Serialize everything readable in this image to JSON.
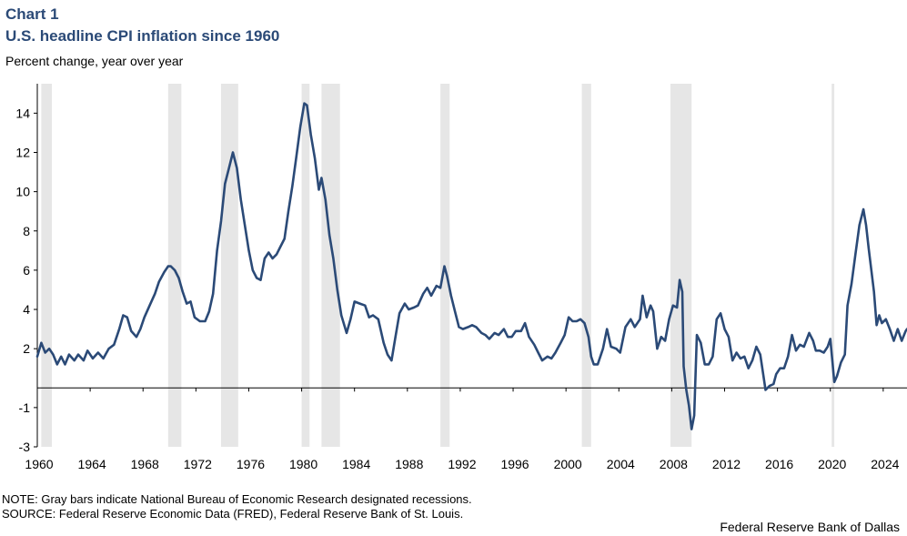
{
  "header": {
    "chart_label": "Chart 1",
    "title": "U.S. headline CPI inflation since 1960",
    "subtitle": "Percent change, year over year"
  },
  "footer": {
    "note": "NOTE: Gray bars indicate National Bureau of Economic Research designated recessions.",
    "source": "SOURCE: Federal Reserve Economic Data (FRED), Federal Reserve Bank of St. Louis.",
    "credit": "Federal Reserve Bank of Dallas"
  },
  "colors": {
    "line": "#2b4a77",
    "recession": "#e6e6e6",
    "axis": "#000000"
  },
  "chart_data": {
    "type": "line",
    "xlim": [
      1960,
      2025.8
    ],
    "ylim": [
      -3,
      15.5
    ],
    "x_ticks": [
      1960,
      1964,
      1968,
      1972,
      1976,
      1980,
      1984,
      1988,
      1992,
      1996,
      2000,
      2004,
      2008,
      2012,
      2016,
      2020,
      2024
    ],
    "y_ticks": [
      -3,
      -1,
      2,
      4,
      6,
      8,
      10,
      12,
      14
    ],
    "recessions": [
      [
        1960.3,
        1961.1
      ],
      [
        1969.9,
        1970.9
      ],
      [
        1973.9,
        1975.2
      ],
      [
        1980.0,
        1980.6
      ],
      [
        1981.5,
        1982.9
      ],
      [
        1990.5,
        1991.2
      ],
      [
        2001.2,
        2001.9
      ],
      [
        2007.9,
        2009.5
      ],
      [
        2020.1,
        2020.3
      ]
    ],
    "series": [
      {
        "values": [
          [
            1960.0,
            1.6
          ],
          [
            1960.3,
            2.3
          ],
          [
            1960.6,
            1.8
          ],
          [
            1960.9,
            2.0
          ],
          [
            1961.2,
            1.7
          ],
          [
            1961.5,
            1.2
          ],
          [
            1961.8,
            1.6
          ],
          [
            1962.1,
            1.2
          ],
          [
            1962.4,
            1.7
          ],
          [
            1962.8,
            1.4
          ],
          [
            1963.1,
            1.7
          ],
          [
            1963.5,
            1.4
          ],
          [
            1963.8,
            1.9
          ],
          [
            1964.2,
            1.5
          ],
          [
            1964.6,
            1.8
          ],
          [
            1965.0,
            1.5
          ],
          [
            1965.4,
            2.0
          ],
          [
            1965.8,
            2.2
          ],
          [
            1966.2,
            3.0
          ],
          [
            1966.5,
            3.7
          ],
          [
            1966.8,
            3.6
          ],
          [
            1967.1,
            2.9
          ],
          [
            1967.5,
            2.6
          ],
          [
            1967.8,
            3.0
          ],
          [
            1968.1,
            3.6
          ],
          [
            1968.5,
            4.2
          ],
          [
            1968.9,
            4.8
          ],
          [
            1969.2,
            5.4
          ],
          [
            1969.6,
            5.9
          ],
          [
            1969.9,
            6.2
          ],
          [
            1970.1,
            6.2
          ],
          [
            1970.4,
            6.0
          ],
          [
            1970.7,
            5.6
          ],
          [
            1971.0,
            4.9
          ],
          [
            1971.3,
            4.3
          ],
          [
            1971.6,
            4.4
          ],
          [
            1971.9,
            3.6
          ],
          [
            1972.3,
            3.4
          ],
          [
            1972.7,
            3.4
          ],
          [
            1973.0,
            3.9
          ],
          [
            1973.3,
            4.8
          ],
          [
            1973.6,
            7.0
          ],
          [
            1973.9,
            8.5
          ],
          [
            1974.2,
            10.4
          ],
          [
            1974.5,
            11.2
          ],
          [
            1974.8,
            12.0
          ],
          [
            1975.1,
            11.2
          ],
          [
            1975.4,
            9.6
          ],
          [
            1975.7,
            8.3
          ],
          [
            1976.0,
            7.0
          ],
          [
            1976.3,
            6.0
          ],
          [
            1976.6,
            5.6
          ],
          [
            1976.9,
            5.5
          ],
          [
            1977.2,
            6.6
          ],
          [
            1977.5,
            6.9
          ],
          [
            1977.8,
            6.6
          ],
          [
            1978.1,
            6.8
          ],
          [
            1978.4,
            7.2
          ],
          [
            1978.7,
            7.6
          ],
          [
            1979.0,
            9.0
          ],
          [
            1979.3,
            10.3
          ],
          [
            1979.6,
            11.8
          ],
          [
            1979.9,
            13.3
          ],
          [
            1980.2,
            14.5
          ],
          [
            1980.4,
            14.4
          ],
          [
            1980.7,
            12.9
          ],
          [
            1981.0,
            11.7
          ],
          [
            1981.3,
            10.1
          ],
          [
            1981.5,
            10.7
          ],
          [
            1981.8,
            9.6
          ],
          [
            1982.1,
            7.8
          ],
          [
            1982.4,
            6.6
          ],
          [
            1982.7,
            5.0
          ],
          [
            1983.0,
            3.7
          ],
          [
            1983.4,
            2.8
          ],
          [
            1983.7,
            3.5
          ],
          [
            1984.0,
            4.4
          ],
          [
            1984.4,
            4.3
          ],
          [
            1984.8,
            4.2
          ],
          [
            1985.1,
            3.6
          ],
          [
            1985.4,
            3.7
          ],
          [
            1985.8,
            3.5
          ],
          [
            1986.2,
            2.3
          ],
          [
            1986.5,
            1.7
          ],
          [
            1986.8,
            1.4
          ],
          [
            1987.1,
            2.6
          ],
          [
            1987.4,
            3.8
          ],
          [
            1987.8,
            4.3
          ],
          [
            1988.1,
            4.0
          ],
          [
            1988.5,
            4.1
          ],
          [
            1988.8,
            4.2
          ],
          [
            1989.2,
            4.8
          ],
          [
            1989.5,
            5.1
          ],
          [
            1989.8,
            4.7
          ],
          [
            1990.2,
            5.2
          ],
          [
            1990.5,
            5.1
          ],
          [
            1990.8,
            6.2
          ],
          [
            1991.0,
            5.7
          ],
          [
            1991.3,
            4.7
          ],
          [
            1991.6,
            3.9
          ],
          [
            1991.9,
            3.1
          ],
          [
            1992.2,
            3.0
          ],
          [
            1992.6,
            3.1
          ],
          [
            1992.9,
            3.2
          ],
          [
            1993.2,
            3.1
          ],
          [
            1993.6,
            2.8
          ],
          [
            1993.9,
            2.7
          ],
          [
            1994.2,
            2.5
          ],
          [
            1994.6,
            2.8
          ],
          [
            1994.9,
            2.7
          ],
          [
            1995.3,
            3.0
          ],
          [
            1995.6,
            2.6
          ],
          [
            1995.9,
            2.6
          ],
          [
            1996.2,
            2.9
          ],
          [
            1996.6,
            2.9
          ],
          [
            1996.9,
            3.3
          ],
          [
            1997.2,
            2.6
          ],
          [
            1997.6,
            2.2
          ],
          [
            1997.9,
            1.8
          ],
          [
            1998.2,
            1.4
          ],
          [
            1998.6,
            1.6
          ],
          [
            1998.9,
            1.5
          ],
          [
            1999.2,
            1.8
          ],
          [
            1999.6,
            2.3
          ],
          [
            1999.9,
            2.7
          ],
          [
            2000.2,
            3.6
          ],
          [
            2000.5,
            3.4
          ],
          [
            2000.8,
            3.4
          ],
          [
            2001.1,
            3.5
          ],
          [
            2001.4,
            3.3
          ],
          [
            2001.7,
            2.6
          ],
          [
            2001.9,
            1.6
          ],
          [
            2002.1,
            1.2
          ],
          [
            2002.4,
            1.2
          ],
          [
            2002.8,
            2.0
          ],
          [
            2003.1,
            3.0
          ],
          [
            2003.4,
            2.1
          ],
          [
            2003.8,
            2.0
          ],
          [
            2004.1,
            1.8
          ],
          [
            2004.5,
            3.1
          ],
          [
            2004.9,
            3.5
          ],
          [
            2005.2,
            3.1
          ],
          [
            2005.6,
            3.5
          ],
          [
            2005.8,
            4.7
          ],
          [
            2006.1,
            3.6
          ],
          [
            2006.4,
            4.2
          ],
          [
            2006.6,
            3.9
          ],
          [
            2006.9,
            2.0
          ],
          [
            2007.2,
            2.6
          ],
          [
            2007.5,
            2.4
          ],
          [
            2007.8,
            3.5
          ],
          [
            2008.1,
            4.2
          ],
          [
            2008.4,
            4.1
          ],
          [
            2008.6,
            5.5
          ],
          [
            2008.8,
            4.9
          ],
          [
            2008.9,
            1.1
          ],
          [
            2009.1,
            -0.1
          ],
          [
            2009.3,
            -0.9
          ],
          [
            2009.5,
            -2.1
          ],
          [
            2009.7,
            -1.4
          ],
          [
            2009.9,
            2.7
          ],
          [
            2010.2,
            2.3
          ],
          [
            2010.5,
            1.2
          ],
          [
            2010.8,
            1.2
          ],
          [
            2011.1,
            1.6
          ],
          [
            2011.4,
            3.5
          ],
          [
            2011.7,
            3.8
          ],
          [
            2012.0,
            3.0
          ],
          [
            2012.3,
            2.6
          ],
          [
            2012.6,
            1.4
          ],
          [
            2012.9,
            1.8
          ],
          [
            2013.2,
            1.5
          ],
          [
            2013.5,
            1.6
          ],
          [
            2013.8,
            1.0
          ],
          [
            2014.1,
            1.4
          ],
          [
            2014.4,
            2.1
          ],
          [
            2014.7,
            1.7
          ],
          [
            2014.9,
            0.8
          ],
          [
            2015.1,
            -0.1
          ],
          [
            2015.4,
            0.1
          ],
          [
            2015.7,
            0.2
          ],
          [
            2015.9,
            0.7
          ],
          [
            2016.2,
            1.0
          ],
          [
            2016.5,
            1.0
          ],
          [
            2016.8,
            1.6
          ],
          [
            2017.1,
            2.7
          ],
          [
            2017.4,
            1.9
          ],
          [
            2017.7,
            2.2
          ],
          [
            2018.0,
            2.1
          ],
          [
            2018.4,
            2.8
          ],
          [
            2018.7,
            2.4
          ],
          [
            2018.9,
            1.9
          ],
          [
            2019.2,
            1.9
          ],
          [
            2019.5,
            1.8
          ],
          [
            2019.8,
            2.1
          ],
          [
            2020.0,
            2.5
          ],
          [
            2020.3,
            0.3
          ],
          [
            2020.5,
            0.6
          ],
          [
            2020.8,
            1.3
          ],
          [
            2021.1,
            1.7
          ],
          [
            2021.3,
            4.2
          ],
          [
            2021.6,
            5.3
          ],
          [
            2021.9,
            6.8
          ],
          [
            2022.2,
            8.3
          ],
          [
            2022.5,
            9.1
          ],
          [
            2022.7,
            8.3
          ],
          [
            2022.9,
            7.1
          ],
          [
            2023.1,
            6.0
          ],
          [
            2023.3,
            4.9
          ],
          [
            2023.5,
            3.2
          ],
          [
            2023.7,
            3.7
          ],
          [
            2023.9,
            3.3
          ],
          [
            2024.2,
            3.5
          ],
          [
            2024.5,
            3.0
          ],
          [
            2024.8,
            2.4
          ],
          [
            2025.1,
            3.0
          ],
          [
            2025.4,
            2.4
          ],
          [
            2025.7,
            2.9
          ],
          [
            2025.8,
            3.0
          ]
        ]
      }
    ]
  }
}
